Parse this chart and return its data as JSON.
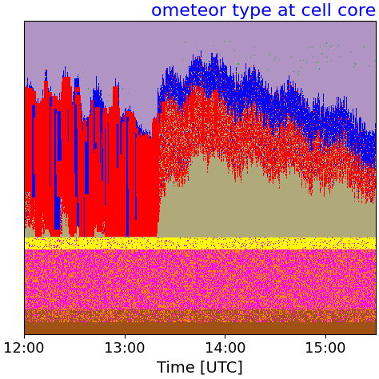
{
  "title": "ometeor type at cell core",
  "title_color": "#0000ff",
  "xlabel": "Time [UTC]",
  "xtick_labels": [
    "12:00",
    "13:00",
    "14:00",
    "15:00"
  ],
  "xlim": [
    0,
    1
  ],
  "ylim": [
    0,
    1
  ],
  "figsize": [
    4.74,
    4.74
  ],
  "dpi": 100,
  "colors": {
    "purple": [
      176,
      148,
      196
    ],
    "tan": [
      176,
      170,
      122
    ],
    "blue": [
      0,
      0,
      255
    ],
    "red": [
      255,
      0,
      0
    ],
    "green": [
      0,
      200,
      0
    ],
    "yellow": [
      255,
      255,
      0
    ],
    "magenta": [
      255,
      0,
      255
    ],
    "orange": [
      255,
      140,
      0
    ],
    "brown": [
      160,
      82,
      20
    ]
  },
  "nx": 450,
  "ny": 330
}
